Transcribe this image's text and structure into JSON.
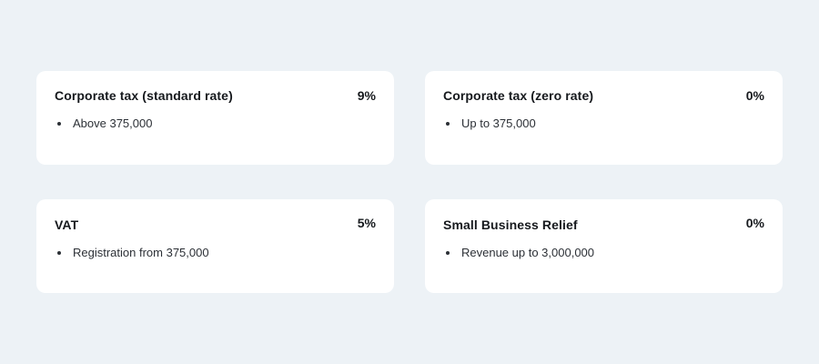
{
  "cards": [
    {
      "title": "Corporate tax (standard rate)",
      "rate": "9%",
      "items": [
        "Above 375,000"
      ]
    },
    {
      "title": "Corporate tax (zero rate)",
      "rate": "0%",
      "items": [
        "Up to 375,000"
      ]
    },
    {
      "title": "VAT",
      "rate": "5%",
      "items": [
        "Registration from 375,000"
      ]
    },
    {
      "title": "Small Business Relief",
      "rate": "0%",
      "items": [
        "Revenue up to 3,000,000"
      ]
    }
  ],
  "colors": {
    "background": "#edf2f6",
    "card": "#ffffff",
    "text": "#16191d"
  }
}
